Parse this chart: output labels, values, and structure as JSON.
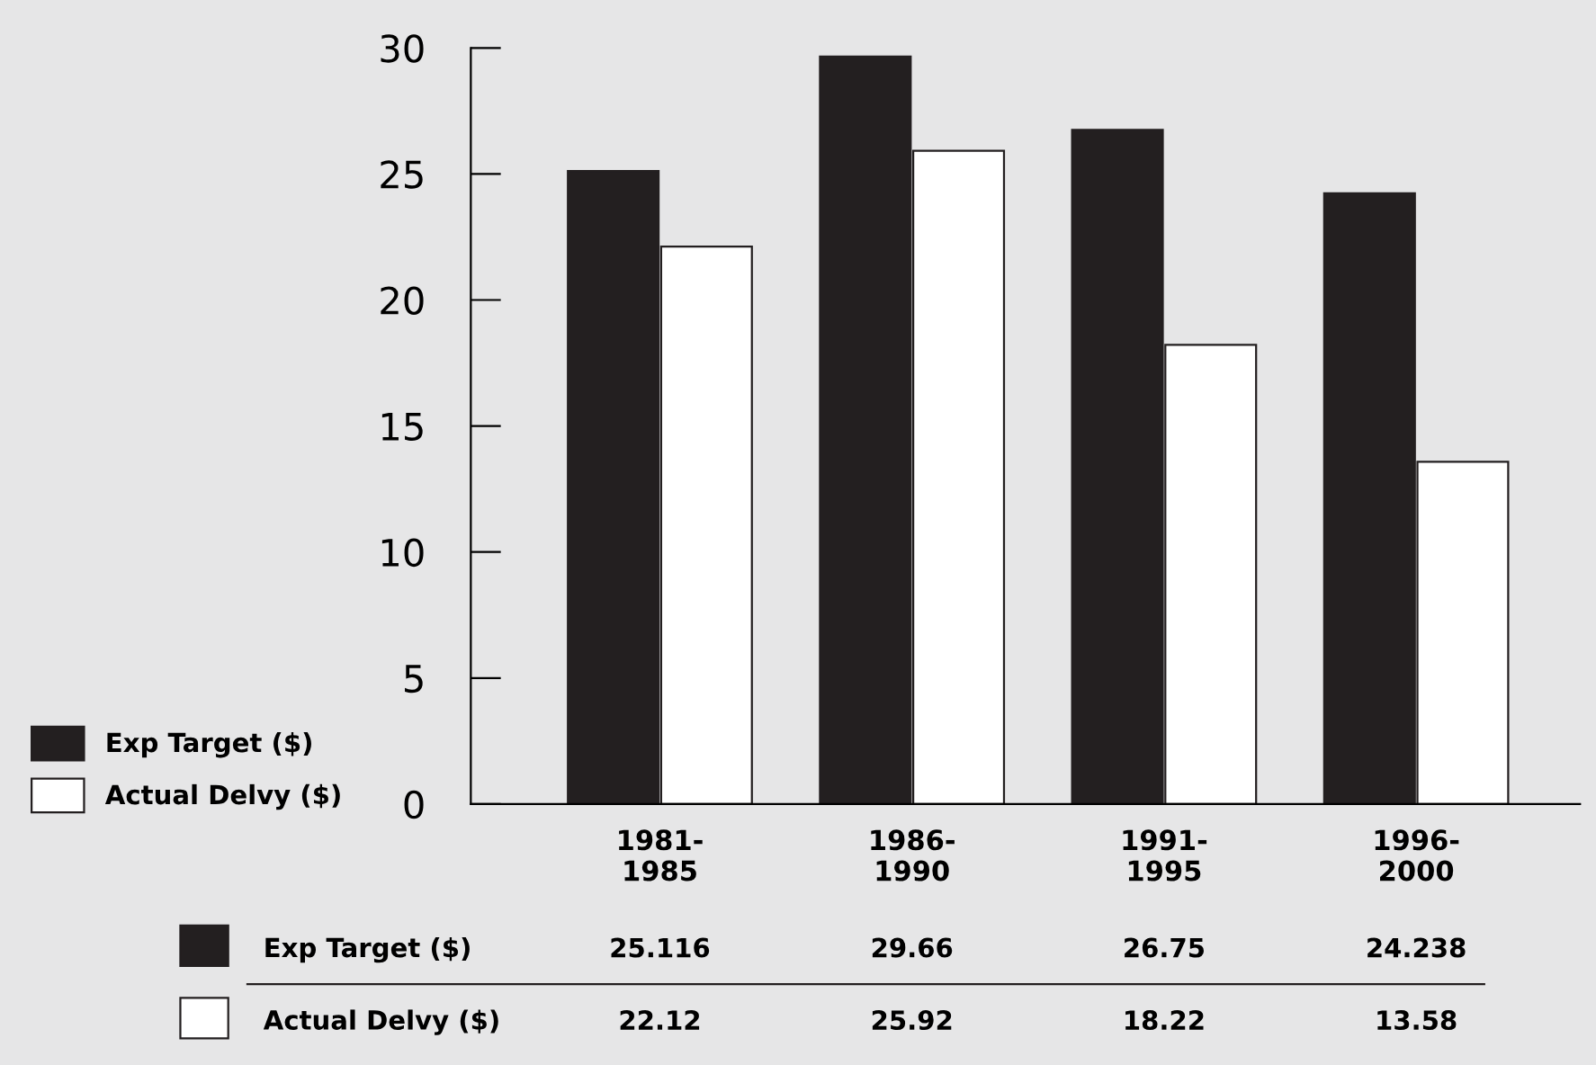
{
  "chart_data": {
    "type": "bar",
    "categories": [
      "1981-1985",
      "1986-1990",
      "1991-1995",
      "1996-2000"
    ],
    "series": [
      {
        "name": "Exp Target ($)",
        "color": "#231f20",
        "values": [
          25.116,
          29.66,
          26.75,
          24.238
        ]
      },
      {
        "name": "Actual Delvy ($)",
        "color": "#ffffff",
        "values": [
          22.12,
          25.92,
          18.22,
          13.58
        ]
      }
    ],
    "ylim": [
      0,
      30
    ],
    "yticks": [
      0,
      5,
      10,
      15,
      20,
      25,
      30
    ],
    "grid": false,
    "legend": "bottom left",
    "data_labels": true
  }
}
